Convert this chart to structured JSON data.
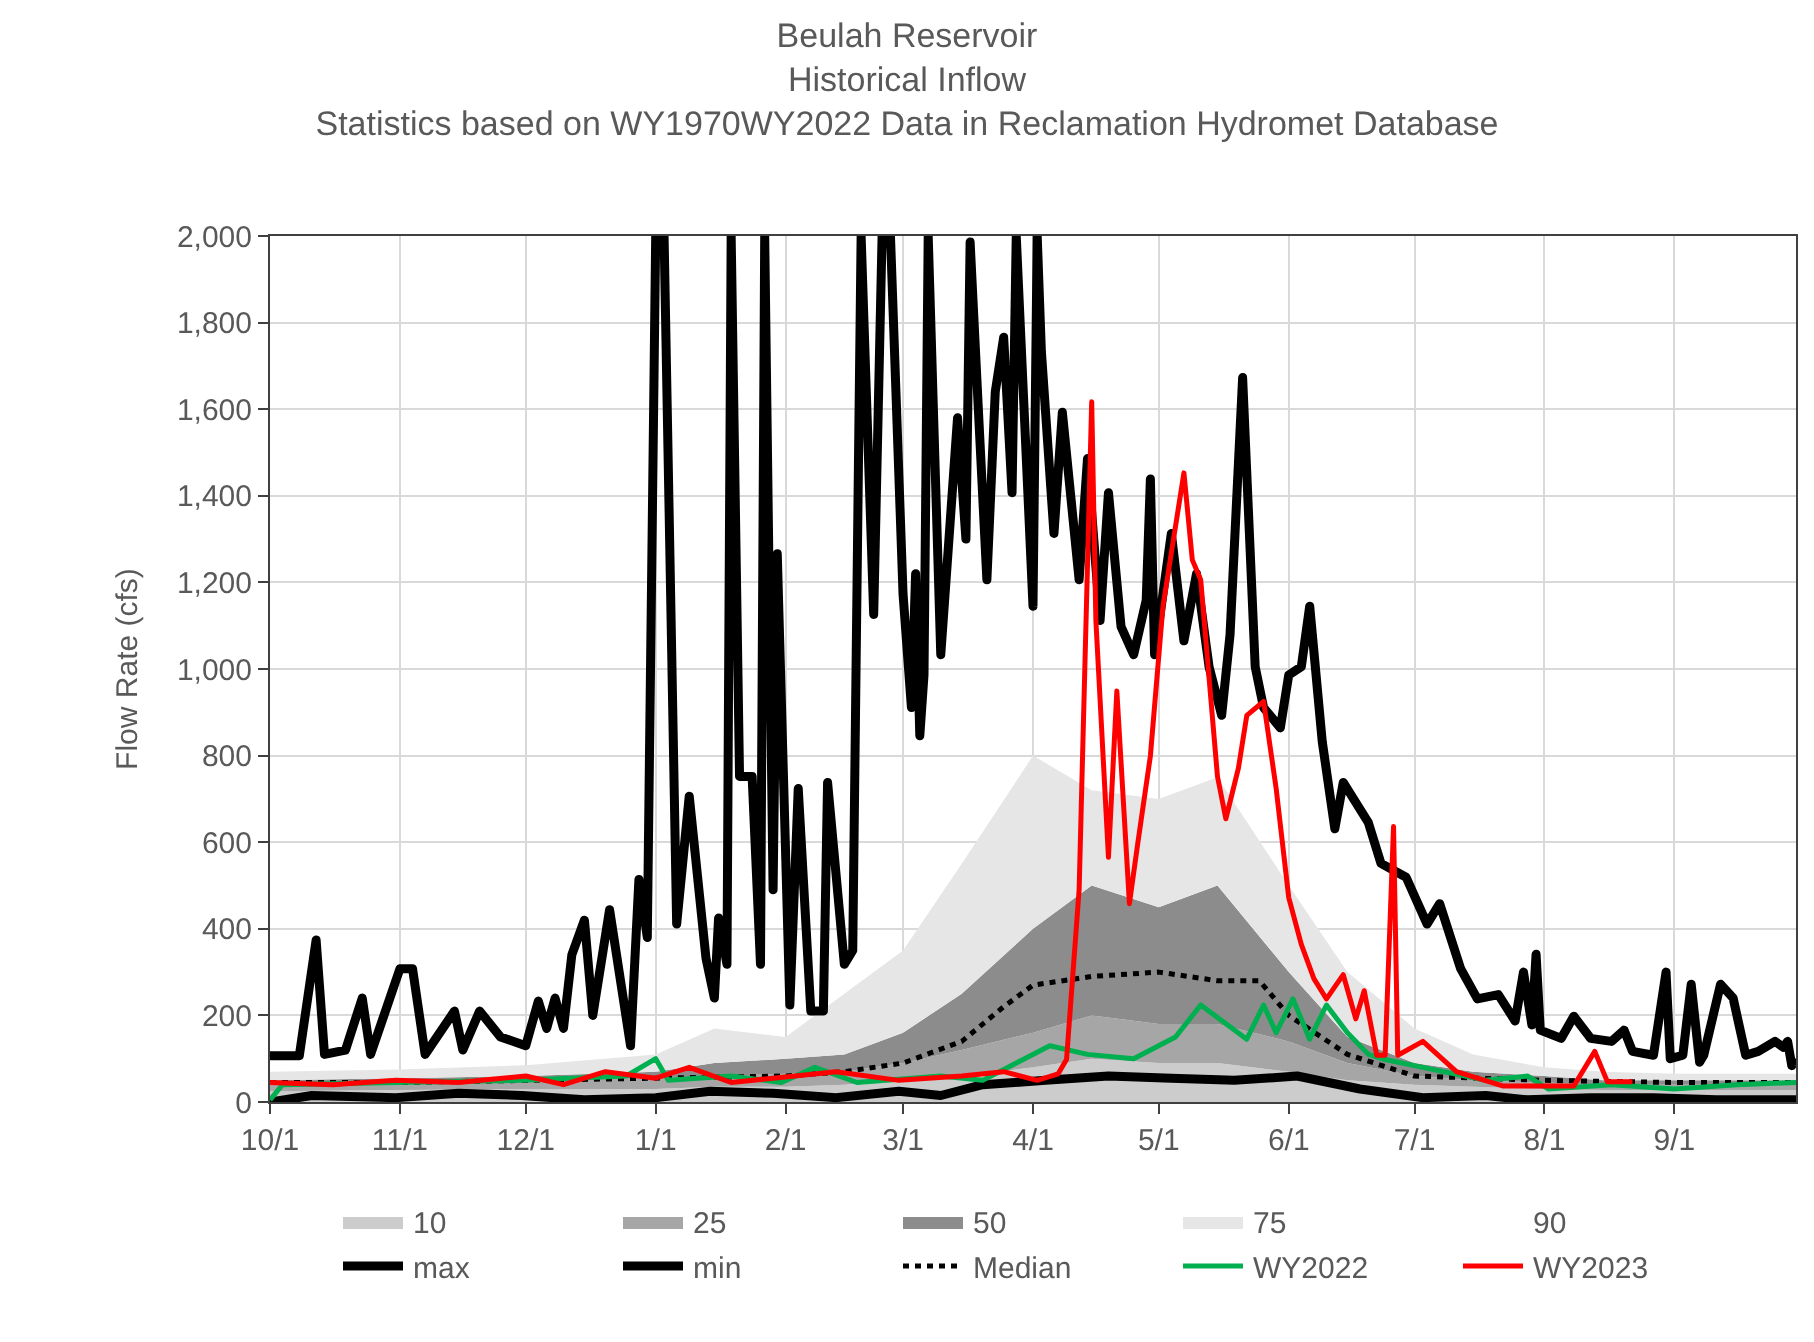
{
  "chart_data": {
    "type": "line",
    "title": "Beulah Reservoir\nHistorical Inflow\nStatistics based on WY1970WY2022 Data in Reclamation Hydromet Database",
    "ylabel": "Flow Rate (cfs)",
    "xlim": [
      "2021-10-01",
      "2022-09-30"
    ],
    "xticks": [
      {
        "value": "2021-10-01",
        "label": "10/1"
      },
      {
        "value": "2021-11-01",
        "label": "11/1"
      },
      {
        "value": "2021-12-01",
        "label": "12/1"
      },
      {
        "value": "2022-01-01",
        "label": "1/1"
      },
      {
        "value": "2022-02-01",
        "label": "2/1"
      },
      {
        "value": "2022-03-01",
        "label": "3/1"
      },
      {
        "value": "2022-04-01",
        "label": "4/1"
      },
      {
        "value": "2022-05-01",
        "label": "5/1"
      },
      {
        "value": "2022-06-01",
        "label": "6/1"
      },
      {
        "value": "2022-07-01",
        "label": "7/1"
      },
      {
        "value": "2022-08-01",
        "label": "8/1"
      },
      {
        "value": "2022-09-01",
        "label": "9/1"
      }
    ],
    "ylim": [
      0,
      2000
    ],
    "yticks": [
      {
        "value": 0,
        "label": "0"
      },
      {
        "value": 200,
        "label": "200"
      },
      {
        "value": 400,
        "label": "400"
      },
      {
        "value": 600,
        "label": "600"
      },
      {
        "value": 800,
        "label": "800"
      },
      {
        "value": 1000,
        "label": "1,000"
      },
      {
        "value": 1200,
        "label": "1,200"
      },
      {
        "value": 1400,
        "label": "1,400"
      },
      {
        "value": 1600,
        "label": "1,600"
      },
      {
        "value": 1800,
        "label": "1,800"
      },
      {
        "value": 2000,
        "label": "2,000"
      }
    ],
    "grid": true,
    "legend": "bottom",
    "stacked": true,
    "series": [
      {
        "name": "10",
        "type": "area",
        "color": "#cccccc",
        "x": [
          "2021-10-01",
          "2021-11-01",
          "2021-12-01",
          "2022-01-01",
          "2022-01-15",
          "2022-02-01",
          "2022-02-15",
          "2022-03-01",
          "2022-03-15",
          "2022-04-01",
          "2022-04-15",
          "2022-05-01",
          "2022-05-15",
          "2022-06-01",
          "2022-06-15",
          "2022-07-01",
          "2022-07-15",
          "2022-08-01",
          "2022-08-15",
          "2022-09-01",
          "2022-09-30"
        ],
        "values": [
          25,
          28,
          30,
          30,
          35,
          35,
          40,
          50,
          60,
          80,
          100,
          90,
          90,
          70,
          50,
          40,
          35,
          30,
          28,
          28,
          28
        ]
      },
      {
        "name": "25",
        "type": "area",
        "color": "#a6a6a6",
        "x": [
          "2021-10-01",
          "2021-11-01",
          "2021-12-01",
          "2022-01-01",
          "2022-01-15",
          "2022-02-01",
          "2022-02-15",
          "2022-03-01",
          "2022-03-15",
          "2022-04-01",
          "2022-04-15",
          "2022-05-01",
          "2022-05-15",
          "2022-06-01",
          "2022-06-15",
          "2022-07-01",
          "2022-07-15",
          "2022-08-01",
          "2022-08-15",
          "2022-09-01",
          "2022-09-30"
        ],
        "values": [
          15,
          17,
          20,
          25,
          25,
          30,
          30,
          40,
          60,
          80,
          100,
          90,
          90,
          70,
          40,
          20,
          15,
          15,
          12,
          12,
          12
        ]
      },
      {
        "name": "50",
        "type": "area",
        "color": "#8c8c8c",
        "x": [
          "2021-10-01",
          "2021-11-01",
          "2021-12-01",
          "2022-01-01",
          "2022-01-15",
          "2022-02-01",
          "2022-02-15",
          "2022-03-01",
          "2022-03-15",
          "2022-04-01",
          "2022-04-15",
          "2022-05-01",
          "2022-05-15",
          "2022-06-01",
          "2022-06-15",
          "2022-07-01",
          "2022-07-15",
          "2022-08-01",
          "2022-08-15",
          "2022-09-01",
          "2022-09-30"
        ],
        "values": [
          10,
          10,
          10,
          15,
          30,
          35,
          40,
          70,
          130,
          240,
          300,
          270,
          320,
          160,
          60,
          30,
          20,
          15,
          10,
          10,
          10
        ]
      },
      {
        "name": "75",
        "type": "area",
        "color": "#e6e6e6",
        "x": [
          "2021-10-01",
          "2021-11-01",
          "2021-12-01",
          "2022-01-01",
          "2022-01-15",
          "2022-02-01",
          "2022-02-15",
          "2022-03-01",
          "2022-03-15",
          "2022-04-01",
          "2022-04-15",
          "2022-05-01",
          "2022-05-15",
          "2022-06-01",
          "2022-06-15",
          "2022-07-01",
          "2022-07-15",
          "2022-08-01",
          "2022-08-15",
          "2022-09-01",
          "2022-09-30"
        ],
        "values": [
          20,
          20,
          25,
          40,
          80,
          50,
          140,
          190,
          300,
          400,
          220,
          250,
          250,
          200,
          150,
          80,
          40,
          20,
          20,
          15,
          15
        ]
      },
      {
        "name": "90",
        "type": "area",
        "values": [
          null
        ]
      },
      {
        "name": "max",
        "color": "#000000",
        "line_style": "solid",
        "x": [
          "2021-10-01",
          "2021-10-08",
          "2021-10-12",
          "2021-10-14",
          "2021-10-19",
          "2021-10-23",
          "2021-10-25",
          "2021-11-01",
          "2021-11-04",
          "2021-11-07",
          "2021-11-14",
          "2021-11-16",
          "2021-11-20",
          "2021-11-25",
          "2021-12-01",
          "2021-12-04",
          "2021-12-06",
          "2021-12-08",
          "2021-12-10",
          "2021-12-12",
          "2021-12-15",
          "2021-12-17",
          "2021-12-21",
          "2021-12-26",
          "2021-12-28",
          "2021-12-30",
          "2022-01-01",
          "2022-01-03",
          "2022-01-06",
          "2022-01-09",
          "2022-01-13",
          "2022-01-15",
          "2022-01-16",
          "2022-01-18",
          "2022-01-19",
          "2022-01-21",
          "2022-01-24",
          "2022-01-26",
          "2022-01-27",
          "2022-01-29",
          "2022-01-30",
          "2022-02-02",
          "2022-02-04",
          "2022-02-07",
          "2022-02-10",
          "2022-02-11",
          "2022-02-15",
          "2022-02-17",
          "2022-02-19",
          "2022-02-22",
          "2022-02-24",
          "2022-02-26",
          "2022-03-01",
          "2022-03-03",
          "2022-03-04",
          "2022-03-05",
          "2022-03-06",
          "2022-03-07",
          "2022-03-10",
          "2022-03-14",
          "2022-03-16",
          "2022-03-17",
          "2022-03-19",
          "2022-03-21",
          "2022-03-23",
          "2022-03-25",
          "2022-03-27",
          "2022-03-28",
          "2022-04-01",
          "2022-04-02",
          "2022-04-03",
          "2022-04-06",
          "2022-04-08",
          "2022-04-12",
          "2022-04-14",
          "2022-04-17",
          "2022-04-19",
          "2022-04-22",
          "2022-04-25",
          "2022-04-28",
          "2022-04-29",
          "2022-04-30",
          "2022-05-04",
          "2022-05-07",
          "2022-05-10",
          "2022-05-13",
          "2022-05-16",
          "2022-05-18",
          "2022-05-21",
          "2022-05-24",
          "2022-05-26",
          "2022-05-30",
          "2022-06-01",
          "2022-06-04",
          "2022-06-06",
          "2022-06-09",
          "2022-06-12",
          "2022-06-14",
          "2022-06-20",
          "2022-06-23",
          "2022-06-29",
          "2022-07-04",
          "2022-07-07",
          "2022-07-12",
          "2022-07-16",
          "2022-07-21",
          "2022-07-25",
          "2022-07-27",
          "2022-07-29",
          "2022-07-30",
          "2022-07-31",
          "2022-08-05",
          "2022-08-08",
          "2022-08-12",
          "2022-08-17",
          "2022-08-20",
          "2022-08-22",
          "2022-08-27",
          "2022-08-30",
          "2022-08-31",
          "2022-09-03",
          "2022-09-05",
          "2022-09-07",
          "2022-09-08",
          "2022-09-12",
          "2022-09-15",
          "2022-09-18",
          "2022-09-21",
          "2022-09-25",
          "2022-09-27",
          "2022-09-28",
          "2022-09-29",
          "2022-09-30"
        ],
        "values": [
          107,
          107,
          374,
          110,
          120,
          240,
          110,
          308,
          308,
          110,
          210,
          120,
          210,
          150,
          130,
          233,
          170,
          240,
          170,
          340,
          420,
          200,
          444,
          130,
          514,
          380,
          2000,
          2000,
          411,
          706,
          332,
          240,
          425,
          318,
          2000,
          752,
          752,
          318,
          2000,
          490,
          1266,
          224,
          724,
          210,
          210,
          738,
          318,
          350,
          2000,
          1126,
          2000,
          2000,
          1173,
          911,
          1220,
          846,
          986,
          2000,
          1033,
          1580,
          1300,
          1986,
          1593,
          1206,
          1640,
          1766,
          1407,
          2000,
          1145,
          2000,
          1733,
          1313,
          1593,
          1206,
          1486,
          1112,
          1407,
          1098,
          1033,
          1159,
          1439,
          1033,
          1313,
          1065,
          1220,
          1005,
          893,
          1079,
          1673,
          1005,
          911,
          864,
          986,
          1005,
          1145,
          832,
          631,
          738,
          645,
          551,
          519,
          411,
          458,
          308,
          238,
          248,
          187,
          300,
          178,
          341,
          166,
          147,
          198,
          147,
          140,
          166,
          117,
          108,
          300,
          100,
          108,
          272,
          92,
          108,
          272,
          240,
          108,
          117,
          140,
          126,
          140,
          84,
          100
        ]
      },
      {
        "name": "min",
        "color": "#000000",
        "line_style": "solid",
        "x": [
          "2021-10-01",
          "2021-10-11",
          "2021-10-31",
          "2021-11-15",
          "2021-11-30",
          "2021-12-15",
          "2022-01-01",
          "2022-01-14",
          "2022-01-29",
          "2022-02-13",
          "2022-02-28",
          "2022-03-10",
          "2022-03-20",
          "2022-04-04",
          "2022-04-19",
          "2022-05-04",
          "2022-05-19",
          "2022-06-03",
          "2022-06-18",
          "2022-07-03",
          "2022-07-18",
          "2022-07-28",
          "2022-08-12",
          "2022-08-27",
          "2022-09-11",
          "2022-09-30"
        ],
        "values": [
          0,
          15,
          10,
          20,
          15,
          5,
          10,
          25,
          20,
          10,
          25,
          15,
          40,
          50,
          60,
          55,
          50,
          60,
          30,
          10,
          15,
          5,
          10,
          10,
          5,
          5
        ]
      },
      {
        "name": "Median",
        "color": "#000000",
        "line_style": "dotted",
        "x": [
          "2021-10-01",
          "2021-11-01",
          "2021-12-01",
          "2022-01-01",
          "2022-02-01",
          "2022-02-15",
          "2022-03-01",
          "2022-03-15",
          "2022-03-25",
          "2022-04-01",
          "2022-04-15",
          "2022-05-01",
          "2022-05-15",
          "2022-05-25",
          "2022-06-01",
          "2022-06-15",
          "2022-07-01",
          "2022-08-01",
          "2022-09-01",
          "2022-09-30"
        ],
        "values": [
          45,
          45,
          50,
          55,
          60,
          70,
          90,
          140,
          220,
          270,
          290,
          300,
          280,
          280,
          200,
          110,
          60,
          50,
          45,
          45
        ]
      },
      {
        "name": "WY2022",
        "color": "#00b050",
        "line_style": "solid",
        "x": [
          "2021-10-01",
          "2021-10-04",
          "2021-10-31",
          "2021-11-30",
          "2021-12-25",
          "2022-01-01",
          "2022-01-04",
          "2022-01-19",
          "2022-01-31",
          "2022-02-08",
          "2022-02-18",
          "2022-03-10",
          "2022-03-20",
          "2022-03-30",
          "2022-04-05",
          "2022-04-14",
          "2022-04-25",
          "2022-05-05",
          "2022-05-11",
          "2022-05-22",
          "2022-05-26",
          "2022-05-29",
          "2022-06-02",
          "2022-06-06",
          "2022-06-10",
          "2022-06-15",
          "2022-06-20",
          "2022-06-24",
          "2022-07-03",
          "2022-07-18",
          "2022-07-28",
          "2022-08-02",
          "2022-08-17",
          "2022-09-01",
          "2022-09-16",
          "2022-09-30"
        ],
        "values": [
          5,
          40,
          45,
          50,
          60,
          100,
          50,
          60,
          45,
          80,
          45,
          60,
          50,
          100,
          130,
          110,
          100,
          150,
          224,
          145,
          224,
          160,
          238,
          145,
          224,
          160,
          110,
          98,
          80,
          50,
          60,
          30,
          40,
          30,
          40,
          45
        ]
      },
      {
        "name": "WY2023",
        "color": "#ff0000",
        "line_style": "solid",
        "x": [
          "2021-10-01",
          "2021-10-16",
          "2021-10-31",
          "2021-11-15",
          "2021-12-01",
          "2021-12-10",
          "2021-12-20",
          "2022-01-01",
          "2022-01-09",
          "2022-01-19",
          "2022-01-29",
          "2022-02-13",
          "2022-02-28",
          "2022-03-15",
          "2022-03-25",
          "2022-04-02",
          "2022-04-07",
          "2022-04-09",
          "2022-04-12",
          "2022-04-15",
          "2022-04-16",
          "2022-04-19",
          "2022-04-21",
          "2022-04-24",
          "2022-04-26",
          "2022-04-29",
          "2022-05-02",
          "2022-05-07",
          "2022-05-09",
          "2022-05-11",
          "2022-05-15",
          "2022-05-17",
          "2022-05-20",
          "2022-05-22",
          "2022-05-26",
          "2022-05-29",
          "2022-06-01",
          "2022-06-04",
          "2022-06-07",
          "2022-06-10",
          "2022-06-14",
          "2022-06-17",
          "2022-06-19",
          "2022-06-22",
          "2022-06-24",
          "2022-06-26",
          "2022-06-27",
          "2022-07-03",
          "2022-07-11",
          "2022-07-22",
          "2022-08-08",
          "2022-08-13",
          "2022-08-16",
          "2022-08-22"
        ],
        "values": [
          45,
          40,
          50,
          45,
          60,
          40,
          70,
          55,
          80,
          45,
          55,
          70,
          50,
          60,
          70,
          50,
          65,
          98,
          490,
          1617,
          1112,
          565,
          949,
          458,
          598,
          799,
          1145,
          1453,
          1252,
          1206,
          752,
          654,
          771,
          893,
          925,
          724,
          472,
          364,
          285,
          238,
          294,
          192,
          257,
          108,
          108,
          636,
          108,
          140,
          70,
          37,
          37,
          117,
          47,
          47
        ]
      }
    ]
  }
}
